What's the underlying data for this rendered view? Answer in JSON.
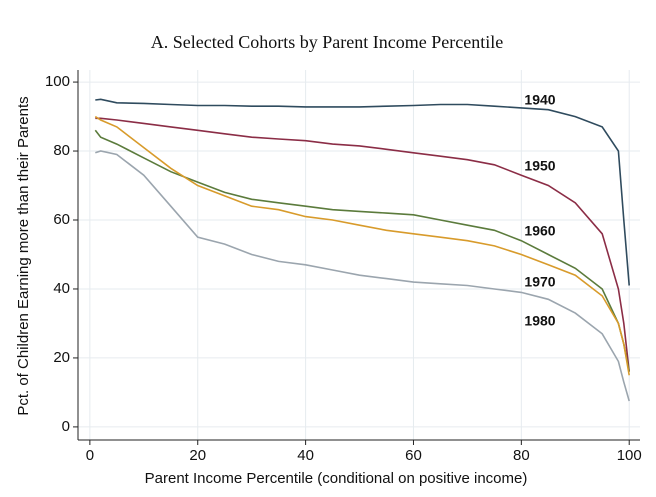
{
  "chart_data": {
    "type": "line",
    "title": "A. Selected Cohorts by Parent Income Percentile",
    "xlabel": "Parent Income Percentile (conditional on positive income)",
    "ylabel": "Pct. of Children Earning more than their Parents",
    "x": [
      1,
      2,
      5,
      10,
      15,
      20,
      25,
      30,
      35,
      40,
      45,
      50,
      55,
      60,
      65,
      70,
      75,
      80,
      85,
      90,
      95,
      98,
      99,
      100
    ],
    "series": [
      {
        "name": "1940",
        "color": "#2f4b5e",
        "values": [
          94.8,
          95,
          94,
          93.8,
          93.5,
          93.2,
          93.2,
          93,
          93,
          92.8,
          92.8,
          92.8,
          93,
          93.2,
          93.5,
          93.5,
          93,
          92.5,
          92,
          90,
          87,
          80,
          60,
          41
        ]
      },
      {
        "name": "1950",
        "color": "#8b2d46",
        "values": [
          89.5,
          89.5,
          89,
          88,
          87,
          86,
          85,
          84,
          83.5,
          83,
          82,
          81.5,
          80.5,
          79.5,
          78.5,
          77.5,
          76,
          73,
          70,
          65,
          56,
          40,
          30,
          16
        ]
      },
      {
        "name": "1960",
        "color": "#5b7b3c",
        "values": [
          86,
          84,
          82,
          78,
          74,
          71,
          68,
          66,
          65,
          64,
          63,
          62.5,
          62,
          61.5,
          60,
          58.5,
          57,
          54,
          50,
          46,
          40,
          30,
          24,
          16
        ]
      },
      {
        "name": "1970",
        "color": "#d89b2b",
        "values": [
          90,
          89,
          87,
          81,
          75,
          70,
          67,
          64,
          63,
          61,
          60,
          58.5,
          57,
          56,
          55,
          54,
          52.5,
          50,
          47,
          44,
          38,
          30,
          24,
          15
        ]
      },
      {
        "name": "1980",
        "color": "#9ba5ae",
        "values": [
          79.5,
          80,
          79,
          73,
          64,
          55,
          53,
          50,
          48,
          47,
          45.5,
          44,
          43,
          42,
          41.5,
          41,
          40,
          39,
          37,
          33,
          27,
          19,
          13,
          7.5
        ]
      }
    ],
    "xlim": [
      -2.2,
      102
    ],
    "ylim": [
      -3.8,
      103.5
    ],
    "xticks": [
      0,
      20,
      40,
      60,
      80,
      100
    ],
    "yticks": [
      0,
      20,
      40,
      60,
      80,
      100
    ],
    "grid": true
  }
}
